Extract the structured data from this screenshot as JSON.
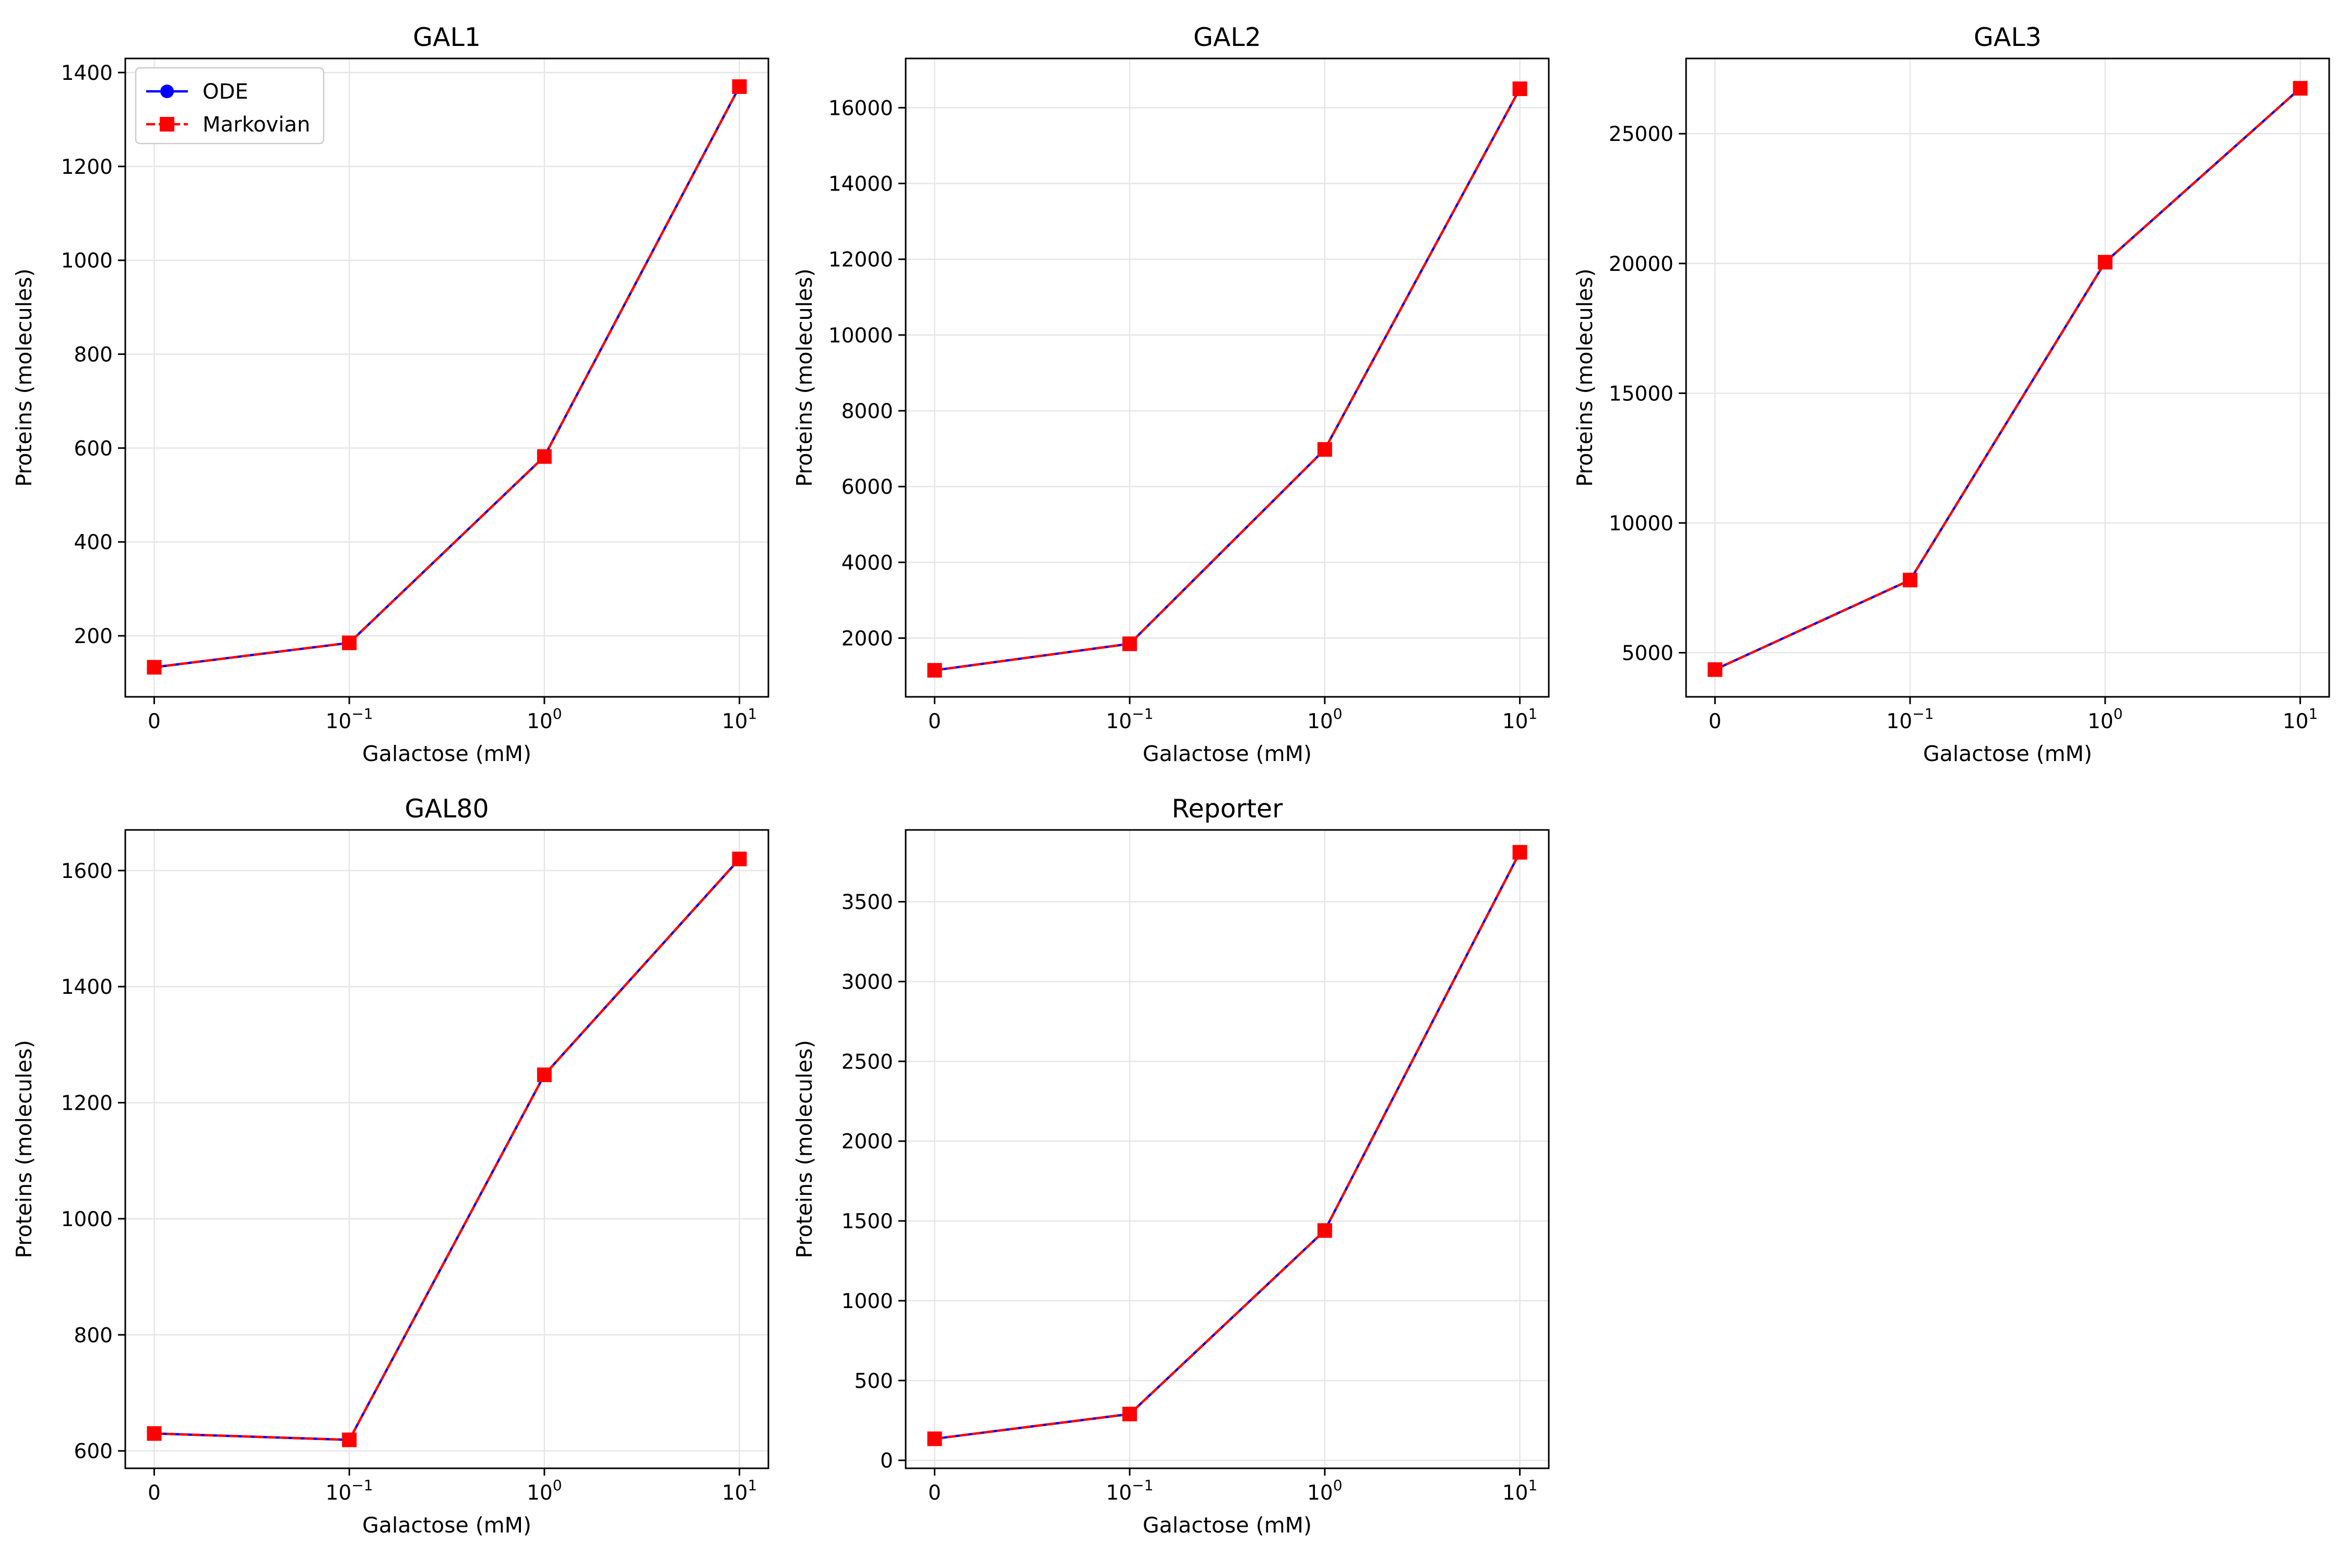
{
  "figure": {
    "legend": {
      "placement": "top-left",
      "entries": [
        {
          "name": "ODE",
          "color": "#0000ff",
          "marker": "circle",
          "linestyle": "solid"
        },
        {
          "name": "Markovian",
          "color": "#ff0000",
          "marker": "square",
          "linestyle": "dashed"
        }
      ]
    },
    "series_colors": {
      "ODE": "#0000ff",
      "Markovian": "#ff0000"
    }
  },
  "chart_data": [
    {
      "type": "line",
      "title": "GAL1",
      "xlabel": "Galactose (mM)",
      "ylabel": "Proteins (molecules)",
      "x_scale": "symlog",
      "x": [
        0,
        0.1,
        1,
        10
      ],
      "x_tick_labels": [
        {
          "base": "0",
          "exp": ""
        },
        {
          "base": "10",
          "exp": "−1"
        },
        {
          "base": "10",
          "exp": "0"
        },
        {
          "base": "10",
          "exp": "1"
        }
      ],
      "y_ticks": [
        200,
        400,
        600,
        800,
        1000,
        1200,
        1400
      ],
      "ylim": [
        70,
        1430
      ],
      "grid": true,
      "show_legend": true,
      "series": [
        {
          "name": "ODE",
          "values": [
            133,
            185,
            582,
            1370
          ]
        },
        {
          "name": "Markovian",
          "values": [
            133,
            185,
            582,
            1370
          ]
        }
      ]
    },
    {
      "type": "line",
      "title": "GAL2",
      "xlabel": "Galactose (mM)",
      "ylabel": "Proteins (molecules)",
      "x_scale": "symlog",
      "x": [
        0,
        0.1,
        1,
        10
      ],
      "x_tick_labels": [
        {
          "base": "0",
          "exp": ""
        },
        {
          "base": "10",
          "exp": "−1"
        },
        {
          "base": "10",
          "exp": "0"
        },
        {
          "base": "10",
          "exp": "1"
        }
      ],
      "y_ticks": [
        2000,
        4000,
        6000,
        8000,
        10000,
        12000,
        14000,
        16000
      ],
      "ylim": [
        450,
        17300
      ],
      "grid": true,
      "show_legend": false,
      "series": [
        {
          "name": "ODE",
          "values": [
            1150,
            1850,
            6980,
            16500
          ]
        },
        {
          "name": "Markovian",
          "values": [
            1150,
            1850,
            6980,
            16500
          ]
        }
      ]
    },
    {
      "type": "line",
      "title": "GAL3",
      "xlabel": "Galactose (mM)",
      "ylabel": "Proteins (molecules)",
      "x_scale": "symlog",
      "x": [
        0,
        0.1,
        1,
        10
      ],
      "x_tick_labels": [
        {
          "base": "0",
          "exp": ""
        },
        {
          "base": "10",
          "exp": "−1"
        },
        {
          "base": "10",
          "exp": "0"
        },
        {
          "base": "10",
          "exp": "1"
        }
      ],
      "y_ticks": [
        5000,
        10000,
        15000,
        20000,
        25000
      ],
      "ylim": [
        3300,
        27900
      ],
      "grid": true,
      "show_legend": false,
      "series": [
        {
          "name": "ODE",
          "values": [
            4350,
            7800,
            20050,
            26750
          ]
        },
        {
          "name": "Markovian",
          "values": [
            4350,
            7800,
            20050,
            26750
          ]
        }
      ]
    },
    {
      "type": "line",
      "title": "GAL80",
      "xlabel": "Galactose (mM)",
      "ylabel": "Proteins (molecules)",
      "x_scale": "symlog",
      "x": [
        0,
        0.1,
        1,
        10
      ],
      "x_tick_labels": [
        {
          "base": "0",
          "exp": ""
        },
        {
          "base": "10",
          "exp": "−1"
        },
        {
          "base": "10",
          "exp": "0"
        },
        {
          "base": "10",
          "exp": "1"
        }
      ],
      "y_ticks": [
        600,
        800,
        1000,
        1200,
        1400,
        1600
      ],
      "ylim": [
        570,
        1670
      ],
      "grid": true,
      "show_legend": false,
      "series": [
        {
          "name": "ODE",
          "values": [
            630,
            619,
            1248,
            1620
          ]
        },
        {
          "name": "Markovian",
          "values": [
            630,
            619,
            1248,
            1620
          ]
        }
      ]
    },
    {
      "type": "line",
      "title": "Reporter",
      "xlabel": "Galactose (mM)",
      "ylabel": "Proteins (molecules)",
      "x_scale": "symlog",
      "x": [
        0,
        0.1,
        1,
        10
      ],
      "x_tick_labels": [
        {
          "base": "0",
          "exp": ""
        },
        {
          "base": "10",
          "exp": "−1"
        },
        {
          "base": "10",
          "exp": "0"
        },
        {
          "base": "10",
          "exp": "1"
        }
      ],
      "y_ticks": [
        0,
        500,
        1000,
        1500,
        2000,
        2500,
        3000,
        3500
      ],
      "ylim": [
        -50,
        3950
      ],
      "grid": true,
      "show_legend": false,
      "series": [
        {
          "name": "ODE",
          "values": [
            135,
            290,
            1440,
            3810
          ]
        },
        {
          "name": "Markovian",
          "values": [
            135,
            290,
            1440,
            3810
          ]
        }
      ]
    }
  ]
}
